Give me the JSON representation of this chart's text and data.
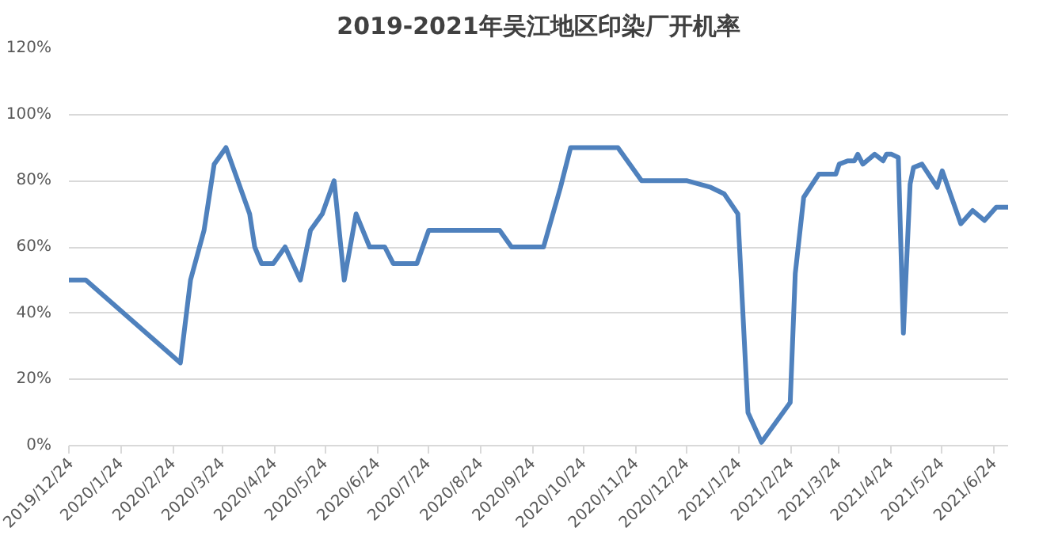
{
  "chart_data": {
    "type": "line",
    "title": "2019-2021年吴江地区印染厂开机率",
    "x": [
      "2019-12-24",
      "2020-01-03",
      "2020-02-28",
      "2020-03-05",
      "2020-03-13",
      "2020-03-19",
      "2020-03-26",
      "2020-04-09",
      "2020-04-12",
      "2020-04-16",
      "2020-04-23",
      "2020-04-30",
      "2020-05-09",
      "2020-05-15",
      "2020-05-22",
      "2020-05-29",
      "2020-06-04",
      "2020-06-11",
      "2020-06-19",
      "2020-06-28",
      "2020-07-03",
      "2020-07-17",
      "2020-07-24",
      "2020-09-04",
      "2020-09-11",
      "2020-09-30",
      "2020-10-10",
      "2020-10-16",
      "2020-11-13",
      "2020-11-27",
      "2020-12-24",
      "2021-01-07",
      "2021-01-15",
      "2021-01-19",
      "2021-01-23",
      "2021-01-29",
      "2021-02-06",
      "2021-02-23",
      "2021-02-26",
      "2021-03-03",
      "2021-03-12",
      "2021-03-22",
      "2021-03-24",
      "2021-03-29",
      "2021-04-02",
      "2021-04-04",
      "2021-04-07",
      "2021-04-14",
      "2021-04-19",
      "2021-04-21",
      "2021-04-24",
      "2021-04-28",
      "2021-05-01",
      "2021-05-05",
      "2021-05-07",
      "2021-05-12",
      "2021-05-21",
      "2021-05-24",
      "2021-06-04",
      "2021-06-11",
      "2021-06-18",
      "2021-06-25",
      "2021-07-02"
    ],
    "series": [
      {
        "color": "#4f81bd",
        "values": [
          50,
          50,
          25,
          50,
          65,
          85,
          90,
          70,
          60,
          55,
          55,
          60,
          50,
          65,
          70,
          80,
          50,
          70,
          60,
          60,
          55,
          55,
          65,
          65,
          60,
          60,
          78,
          90,
          90,
          80,
          80,
          78,
          76,
          73,
          70,
          10,
          1,
          13,
          52,
          75,
          82,
          82,
          85,
          86,
          86,
          88,
          85,
          88,
          86,
          88,
          88,
          87,
          34,
          79,
          84,
          85,
          78,
          83,
          67,
          71,
          68,
          72,
          72
        ]
      }
    ],
    "xlim": [
      "2019-12-24",
      "2021-07-02"
    ],
    "xticks": [
      {
        "value": "2019-12-24",
        "label": "2019/12/24"
      },
      {
        "value": "2020-01-24",
        "label": "2020/1/24"
      },
      {
        "value": "2020-02-24",
        "label": "2020/2/24"
      },
      {
        "value": "2020-03-24",
        "label": "2020/3/24"
      },
      {
        "value": "2020-04-24",
        "label": "2020/4/24"
      },
      {
        "value": "2020-05-24",
        "label": "2020/5/24"
      },
      {
        "value": "2020-06-24",
        "label": "2020/6/24"
      },
      {
        "value": "2020-07-24",
        "label": "2020/7/24"
      },
      {
        "value": "2020-08-24",
        "label": "2020/8/24"
      },
      {
        "value": "2020-09-24",
        "label": "2020/9/24"
      },
      {
        "value": "2020-10-24",
        "label": "2020/10/24"
      },
      {
        "value": "2020-11-24",
        "label": "2020/11/24"
      },
      {
        "value": "2020-12-24",
        "label": "2020/12/24"
      },
      {
        "value": "2021-01-24",
        "label": "2021/1/24"
      },
      {
        "value": "2021-02-24",
        "label": "2021/2/24"
      },
      {
        "value": "2021-03-24",
        "label": "2021/3/24"
      },
      {
        "value": "2021-04-24",
        "label": "2021/4/24"
      },
      {
        "value": "2021-05-24",
        "label": "2021/5/24"
      },
      {
        "value": "2021-06-24",
        "label": "2021/6/24"
      }
    ],
    "ylim": [
      0,
      120
    ],
    "yticks": [
      {
        "value": 0,
        "label": "0%"
      },
      {
        "value": 20,
        "label": "20%"
      },
      {
        "value": 40,
        "label": "40%"
      },
      {
        "value": 60,
        "label": "60%"
      },
      {
        "value": 80,
        "label": "80%"
      },
      {
        "value": 100,
        "label": "100%"
      },
      {
        "value": 120,
        "label": "120%"
      }
    ],
    "grid": "y",
    "marker": "none",
    "line_style": "solid"
  }
}
